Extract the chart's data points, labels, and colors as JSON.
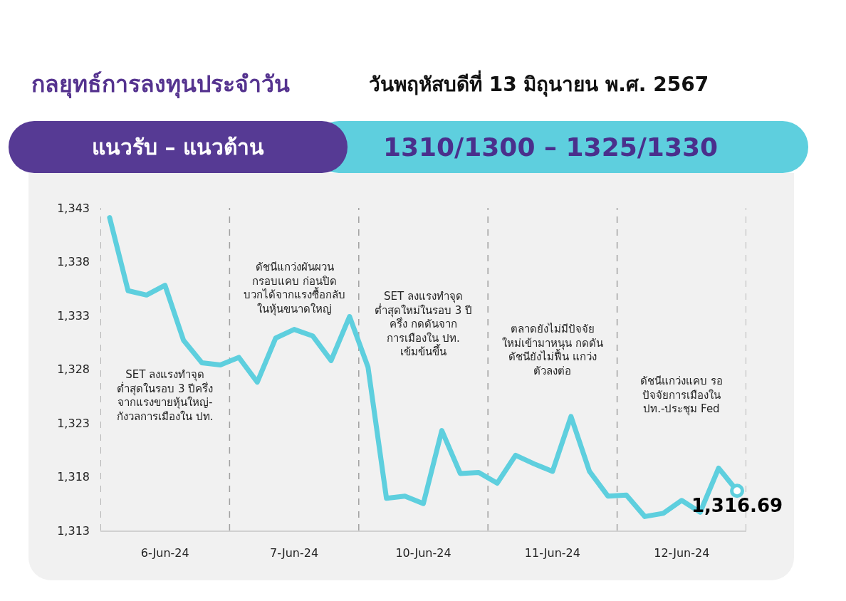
{
  "chart_data": {
    "type": "line",
    "title": "กลยุทธ์การลงทุนประจำวัน",
    "subtitle": "วันพฤหัสบดีที่ 13 มิถุนายน พ.ศ. 2567",
    "annotations": [
      "แนวรับ – แนวต้าน",
      "1310/1300  –  1325/1330",
      "SET ลงแรงทำจุด\nต่ำสุดในรอบ 3 ปีครึ่ง\nจากแรงขายหุ้นใหญ่-\nกังวลการเมืองใน ปท.",
      "ดัชนีแกว่งผันผวน\nกรอบแคบ ก่อนปิด\nบวกได้จากแรงซื้อกลับ\nในหุ้นขนาดใหญ่",
      "SET ลงแรงทำจุด\nต่ำสุดใหม่ในรอบ 3 ปี\nครึ่ง กดดันจาก\nการเมืองใน ปท.\nเข้มข้นขึ้น",
      "ตลาดยังไม่มีปัจจัย\nใหม่เข้ามาหนุน กดดัน\nดัชนียังไม่ฟื้น แกว่ง\nตัวลงต่อ",
      "ดัชนีแกว่งแคบ รอ\nปัจจัยการเมืองใน\nปท.-ประชุม Fed"
    ],
    "categories": [
      null,
      null,
      null,
      "6-Jun-24",
      null,
      null,
      null,
      null,
      null,
      null,
      "7-Jun-24",
      null,
      null,
      null,
      null,
      null,
      null,
      "10-Jun-24",
      null,
      null,
      null,
      null,
      null,
      null,
      "11-Jun-24",
      null,
      null,
      null,
      null,
      null,
      null,
      "12-Jun-24",
      null,
      null,
      null
    ],
    "series": [
      {
        "color": "#5ecfde",
        "values": [
          1342.1,
          1335.3,
          1334.9,
          1335.8,
          1330.7,
          1328.6,
          1328.4,
          1329.1,
          1326.8,
          1330.9,
          1331.7,
          1331.1,
          1328.8,
          1332.9,
          1328.2,
          1316.0,
          1316.2,
          1315.5,
          1322.3,
          1318.3,
          1318.4,
          1317.4,
          1320.0,
          1319.2,
          1318.5,
          1323.6,
          1318.5,
          1316.2,
          1316.3,
          1314.3,
          1314.6,
          1315.8,
          1314.7,
          1318.8,
          1316.69
        ],
        "value_labels": [
          null,
          null,
          null,
          null,
          null,
          null,
          null,
          null,
          null,
          null,
          null,
          null,
          null,
          null,
          null,
          null,
          null,
          null,
          null,
          null,
          null,
          null,
          null,
          null,
          null,
          null,
          null,
          null,
          null,
          null,
          null,
          null,
          null,
          null,
          "1,316.69"
        ]
      }
    ],
    "ylim": [
      1313,
      1343
    ],
    "yticks": [
      {
        "value": 1313,
        "label": "1,313"
      },
      {
        "value": 1318,
        "label": "1,318"
      },
      {
        "value": 1323,
        "label": "1,323"
      },
      {
        "value": 1328,
        "label": "1,328"
      },
      {
        "value": 1333,
        "label": "1,333"
      },
      {
        "value": 1338,
        "label": "1,338"
      },
      {
        "value": 1343,
        "label": "1,343"
      }
    ],
    "grid": "x",
    "legend": false,
    "marker": "none",
    "line_style": "solid"
  }
}
